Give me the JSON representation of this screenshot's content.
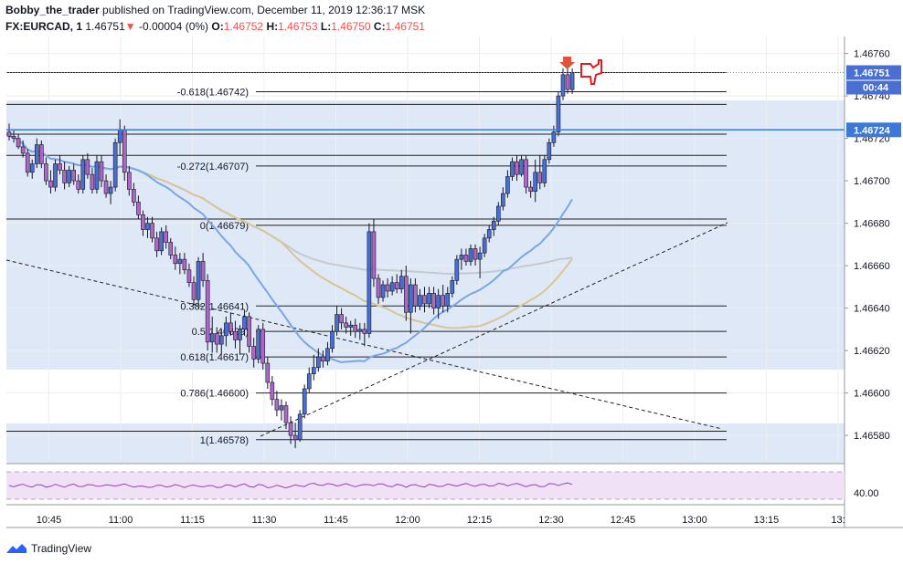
{
  "header": {
    "author": "Bobby_the_trader",
    "published_text": "published on TradingView.com, December 11, 2019 12:36:17 MSK",
    "symbol": "FX:EURCAD, 1",
    "last_price": "1.46751",
    "change_arrow": "▼",
    "change": "-0.00004 (0%)",
    "o_label": "O:",
    "o_value": "1.46752",
    "h_label": "H:",
    "h_value": "1.46753",
    "l_label": "L:",
    "l_value": "1.46750",
    "c_label": "C:",
    "c_value": "1.46751"
  },
  "footer": {
    "brand": "TradingView",
    "logo_icon": "tradingview-logo-icon"
  },
  "colors": {
    "bull": "#4a6fd3",
    "bear": "#b065c8",
    "wick": "#131722",
    "ma_fast": "#7aa6e6",
    "ma_mid": "#d8c595",
    "ma_slow": "#c8c8cf",
    "zone": "#dfe8f7",
    "price_tag": "#4a6fd3",
    "level_tag": "#3c78d8",
    "rsi": "#9b3fb8",
    "rsi_band": "#f0e1f7"
  },
  "chart_data": {
    "type": "candlestick",
    "interval": "1 minute",
    "x_ticks": [
      "10:45",
      "11:00",
      "11:15",
      "11:30",
      "11:45",
      "12:00",
      "12:15",
      "12:30",
      "12:45",
      "13:00",
      "13:15",
      "13:"
    ],
    "y_ticks": [
      "1.46760",
      "1.46740",
      "1.46720",
      "1.46700",
      "1.46680",
      "1.46660",
      "1.46640",
      "1.46620",
      "1.46600",
      "1.46580"
    ],
    "ylim": [
      1.46568,
      1.46768
    ],
    "price_tags": {
      "last": "1.46751",
      "countdown": "00:44",
      "level": "1.46724"
    },
    "fib_levels": [
      {
        "label": "-0.618(1.46742)",
        "value": 1.46742
      },
      {
        "label": "-0.272(1.46707)",
        "value": 1.46707
      },
      {
        "label": "0(1.46679)",
        "value": 1.46679
      },
      {
        "label": "0.382(1.46641)",
        "value": 1.46641
      },
      {
        "label": "0.5(1.46629)",
        "value": 1.46629
      },
      {
        "label": "0.618(1.46617)",
        "value": 1.46617
      },
      {
        "label": "0.786(1.46600)",
        "value": 1.466
      },
      {
        "label": "1(1.46578)",
        "value": 1.46578
      }
    ],
    "horizontal_lines": [
      1.46751,
      1.46736,
      1.46722,
      1.46712,
      1.46682,
      1.46582
    ],
    "rsi": {
      "tick_label": "40.00"
    },
    "candles": [
      [
        1.46723,
        1.46727,
        1.46719,
        1.46721
      ],
      [
        1.46721,
        1.46724,
        1.46718,
        1.4672
      ],
      [
        1.4672,
        1.46722,
        1.46715,
        1.46716
      ],
      [
        1.46716,
        1.46719,
        1.46711,
        1.46713
      ],
      [
        1.46713,
        1.46715,
        1.46702,
        1.46704
      ],
      [
        1.46704,
        1.4671,
        1.46701,
        1.46708
      ],
      [
        1.46708,
        1.4672,
        1.46706,
        1.46717
      ],
      [
        1.46717,
        1.46719,
        1.46706,
        1.46708
      ],
      [
        1.46708,
        1.46711,
        1.46698,
        1.467
      ],
      [
        1.467,
        1.46705,
        1.46694,
        1.46697
      ],
      [
        1.46697,
        1.4671,
        1.46695,
        1.46708
      ],
      [
        1.46708,
        1.46712,
        1.46703,
        1.46705
      ],
      [
        1.46705,
        1.46709,
        1.46696,
        1.46699
      ],
      [
        1.46699,
        1.46707,
        1.46697,
        1.46705
      ],
      [
        1.46705,
        1.46708,
        1.46698,
        1.467
      ],
      [
        1.467,
        1.46703,
        1.46694,
        1.46696
      ],
      [
        1.46696,
        1.46712,
        1.46694,
        1.4671
      ],
      [
        1.4671,
        1.46713,
        1.46701,
        1.46703
      ],
      [
        1.46703,
        1.46706,
        1.46694,
        1.46696
      ],
      [
        1.46696,
        1.46712,
        1.46694,
        1.46709
      ],
      [
        1.46709,
        1.46712,
        1.46697,
        1.467
      ],
      [
        1.467,
        1.46703,
        1.46692,
        1.46694
      ],
      [
        1.46694,
        1.467,
        1.46689,
        1.46697
      ],
      [
        1.46697,
        1.4672,
        1.46695,
        1.46718
      ],
      [
        1.46718,
        1.46729,
        1.46712,
        1.46724
      ],
      [
        1.46724,
        1.46726,
        1.467,
        1.46704
      ],
      [
        1.46704,
        1.46707,
        1.46693,
        1.46696
      ],
      [
        1.46696,
        1.46699,
        1.46688,
        1.4669
      ],
      [
        1.4669,
        1.46693,
        1.46682,
        1.46684
      ],
      [
        1.46684,
        1.46686,
        1.46674,
        1.46677
      ],
      [
        1.46677,
        1.46683,
        1.46673,
        1.4668
      ],
      [
        1.4668,
        1.46683,
        1.46671,
        1.46673
      ],
      [
        1.46673,
        1.46676,
        1.46664,
        1.46667
      ],
      [
        1.46667,
        1.46678,
        1.46665,
        1.46676
      ],
      [
        1.46676,
        1.46679,
        1.46668,
        1.46671
      ],
      [
        1.46671,
        1.46673,
        1.46663,
        1.46665
      ],
      [
        1.46665,
        1.46669,
        1.46658,
        1.46661
      ],
      [
        1.46661,
        1.46666,
        1.46656,
        1.46663
      ],
      [
        1.46663,
        1.46666,
        1.46656,
        1.46658
      ],
      [
        1.46658,
        1.46661,
        1.4665,
        1.46652
      ],
      [
        1.46652,
        1.46655,
        1.46641,
        1.46644
      ],
      [
        1.46644,
        1.46664,
        1.4664,
        1.46662
      ],
      [
        1.46662,
        1.46666,
        1.4665,
        1.46653
      ],
      [
        1.46653,
        1.46656,
        1.4662,
        1.46624
      ],
      [
        1.46624,
        1.46636,
        1.46619,
        1.46628
      ],
      [
        1.46628,
        1.46631,
        1.46619,
        1.46623
      ],
      [
        1.46623,
        1.4663,
        1.46618,
        1.46627
      ],
      [
        1.46627,
        1.46636,
        1.46622,
        1.46633
      ],
      [
        1.46633,
        1.46638,
        1.46627,
        1.46629
      ],
      [
        1.46629,
        1.46634,
        1.46621,
        1.46625
      ],
      [
        1.46625,
        1.46632,
        1.46618,
        1.4663
      ],
      [
        1.4663,
        1.46639,
        1.46627,
        1.46636
      ],
      [
        1.46636,
        1.46638,
        1.46619,
        1.46622
      ],
      [
        1.46622,
        1.46626,
        1.46612,
        1.46616
      ],
      [
        1.46616,
        1.46632,
        1.46614,
        1.4663
      ],
      [
        1.4663,
        1.46633,
        1.46611,
        1.46614
      ],
      [
        1.46614,
        1.46617,
        1.46602,
        1.46605
      ],
      [
        1.46605,
        1.46608,
        1.46594,
        1.46597
      ],
      [
        1.46597,
        1.46601,
        1.46589,
        1.46592
      ],
      [
        1.46592,
        1.46597,
        1.46587,
        1.46594
      ],
      [
        1.46594,
        1.46596,
        1.46583,
        1.46586
      ],
      [
        1.46586,
        1.46589,
        1.46576,
        1.4658
      ],
      [
        1.4658,
        1.46586,
        1.46574,
        1.46578
      ],
      [
        1.46578,
        1.46592,
        1.46577,
        1.4659
      ],
      [
        1.4659,
        1.46604,
        1.46588,
        1.46602
      ],
      [
        1.46602,
        1.46612,
        1.466,
        1.46609
      ],
      [
        1.46609,
        1.46618,
        1.46606,
        1.46612
      ],
      [
        1.46612,
        1.46621,
        1.4661,
        1.46617
      ],
      [
        1.46617,
        1.4662,
        1.46612,
        1.46615
      ],
      [
        1.46615,
        1.46624,
        1.46613,
        1.46621
      ],
      [
        1.46621,
        1.46632,
        1.46619,
        1.46629
      ],
      [
        1.46629,
        1.46641,
        1.46627,
        1.46637
      ],
      [
        1.46637,
        1.4664,
        1.4663,
        1.46633
      ],
      [
        1.46633,
        1.46636,
        1.46628,
        1.46631
      ],
      [
        1.46631,
        1.46634,
        1.46627,
        1.46632
      ],
      [
        1.46632,
        1.46635,
        1.46626,
        1.46629
      ],
      [
        1.46629,
        1.46633,
        1.46625,
        1.4663
      ],
      [
        1.4663,
        1.46633,
        1.46622,
        1.46628
      ],
      [
        1.46628,
        1.4668,
        1.46626,
        1.46676
      ],
      [
        1.46676,
        1.46682,
        1.4665,
        1.46654
      ],
      [
        1.46654,
        1.46656,
        1.46642,
        1.46645
      ],
      [
        1.46645,
        1.46653,
        1.46643,
        1.46651
      ],
      [
        1.46651,
        1.46654,
        1.46645,
        1.46648
      ],
      [
        1.46648,
        1.46655,
        1.46646,
        1.46652
      ],
      [
        1.46652,
        1.46656,
        1.46647,
        1.46649
      ],
      [
        1.46649,
        1.46658,
        1.46647,
        1.46655
      ],
      [
        1.46655,
        1.4666,
        1.46634,
        1.46638
      ],
      [
        1.46638,
        1.46654,
        1.46628,
        1.46651
      ],
      [
        1.46651,
        1.46654,
        1.46638,
        1.46641
      ],
      [
        1.46641,
        1.46649,
        1.46639,
        1.46646
      ],
      [
        1.46646,
        1.4665,
        1.46638,
        1.46642
      ],
      [
        1.46642,
        1.4665,
        1.4664,
        1.46647
      ],
      [
        1.46647,
        1.4665,
        1.46637,
        1.4664
      ],
      [
        1.4664,
        1.46649,
        1.46635,
        1.46646
      ],
      [
        1.46646,
        1.46651,
        1.46638,
        1.46641
      ],
      [
        1.46641,
        1.4665,
        1.46638,
        1.46647
      ],
      [
        1.46647,
        1.46655,
        1.46645,
        1.46653
      ],
      [
        1.46653,
        1.46665,
        1.46651,
        1.46663
      ],
      [
        1.46663,
        1.46668,
        1.46658,
        1.46665
      ],
      [
        1.46665,
        1.46668,
        1.4666,
        1.46662
      ],
      [
        1.46662,
        1.4667,
        1.4666,
        1.46668
      ],
      [
        1.46668,
        1.4667,
        1.4666,
        1.46663
      ],
      [
        1.46663,
        1.46669,
        1.46654,
        1.46666
      ],
      [
        1.46666,
        1.46675,
        1.46664,
        1.46673
      ],
      [
        1.46673,
        1.46679,
        1.46671,
        1.46677
      ],
      [
        1.46677,
        1.46683,
        1.46674,
        1.46681
      ],
      [
        1.46681,
        1.4669,
        1.46679,
        1.46688
      ],
      [
        1.46688,
        1.46697,
        1.46686,
        1.46694
      ],
      [
        1.46694,
        1.46705,
        1.46692,
        1.46702
      ],
      [
        1.46702,
        1.46711,
        1.467,
        1.46709
      ],
      [
        1.46709,
        1.46712,
        1.467,
        1.46703
      ],
      [
        1.46703,
        1.46712,
        1.46702,
        1.4671
      ],
      [
        1.4671,
        1.46712,
        1.46694,
        1.46697
      ],
      [
        1.46697,
        1.467,
        1.46692,
        1.46695
      ],
      [
        1.46695,
        1.4671,
        1.4669,
        1.46704
      ],
      [
        1.46704,
        1.46712,
        1.46696,
        1.46699
      ],
      [
        1.46699,
        1.46712,
        1.46697,
        1.4671
      ],
      [
        1.4671,
        1.4672,
        1.46708,
        1.46718
      ],
      [
        1.46718,
        1.46726,
        1.46716,
        1.46723
      ],
      [
        1.46723,
        1.46742,
        1.46721,
        1.4674
      ],
      [
        1.4674,
        1.46753,
        1.46738,
        1.4675
      ],
      [
        1.4675,
        1.46753,
        1.46741,
        1.46743
      ],
      [
        1.46743,
        1.46753,
        1.46741,
        1.46751
      ]
    ]
  }
}
